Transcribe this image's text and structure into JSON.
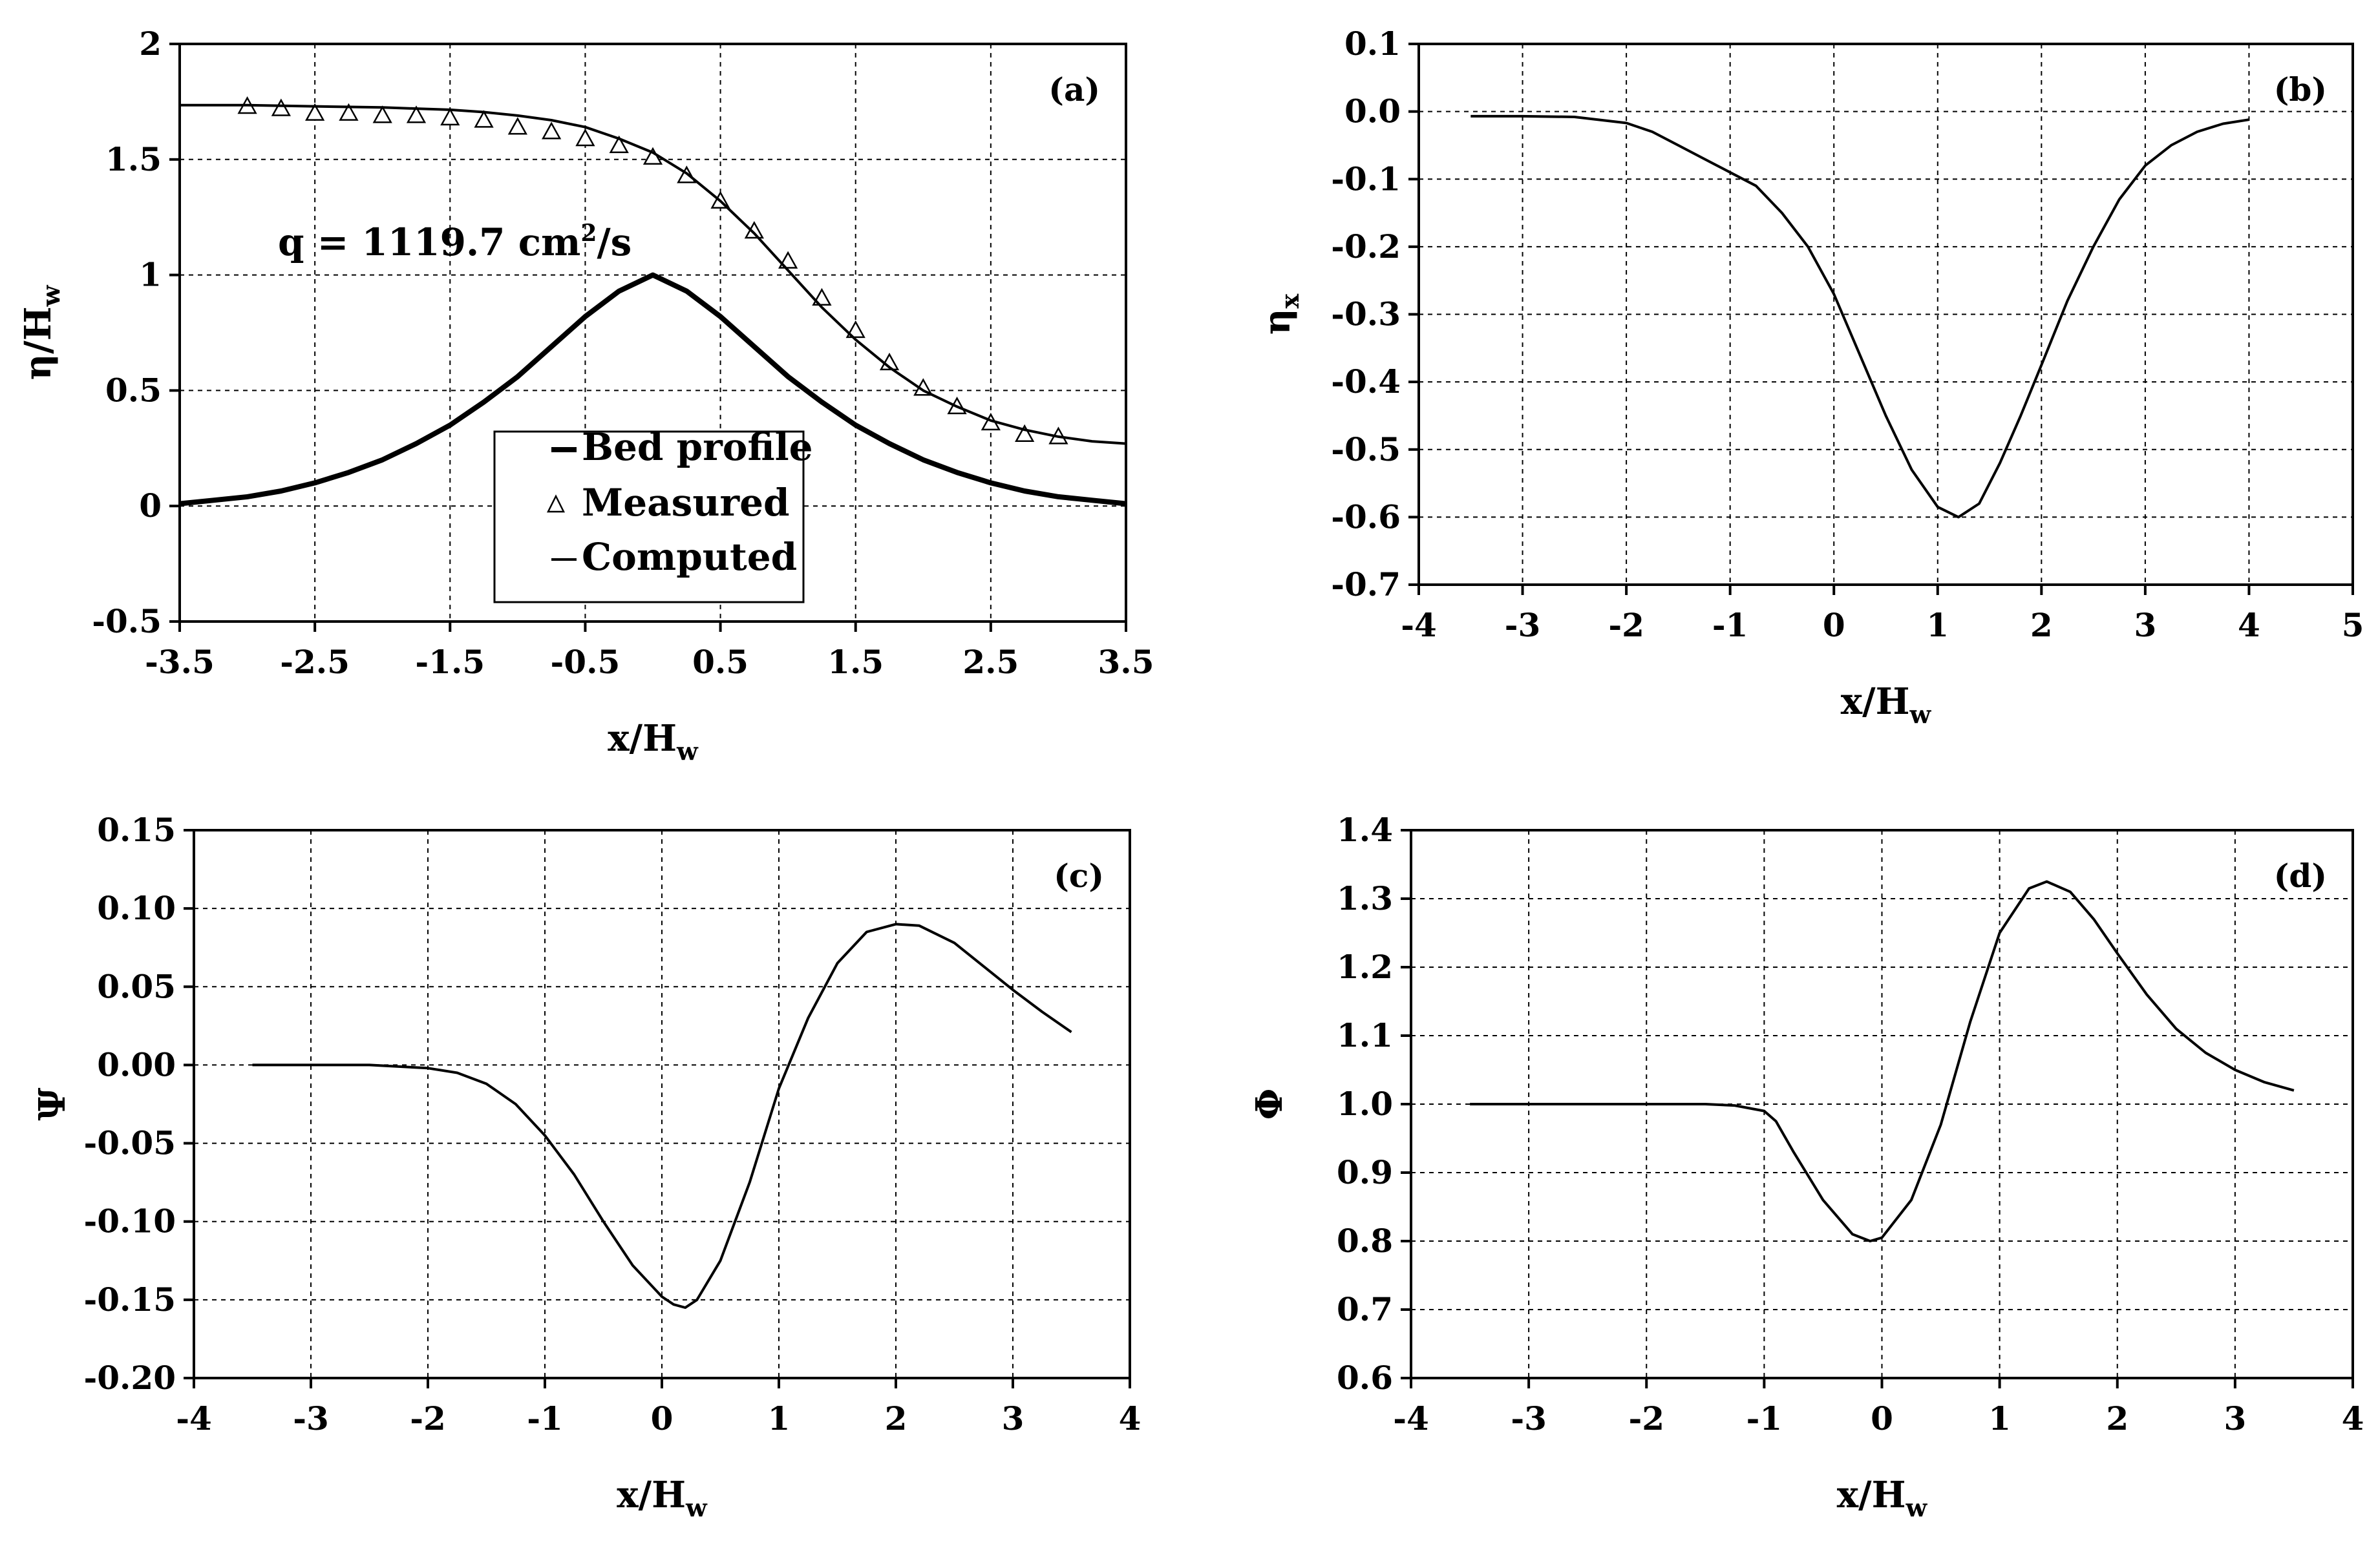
{
  "chart_data": [
    {
      "id": "a",
      "type": "line",
      "panel_label": "(a)",
      "xlabel": "x/H",
      "xlabel_sub": "w",
      "ylabel": "η/H",
      "ylabel_sub": "w",
      "xlim": [
        -3.5,
        3.5
      ],
      "ylim": [
        -0.5,
        2
      ],
      "xticks": [
        -3.5,
        -2.5,
        -1.5,
        -0.5,
        0.5,
        1.5,
        2.5,
        3.5
      ],
      "xtick_labels": [
        "-3.5",
        "-2.5",
        "-1.5",
        "-0.5",
        "0.5",
        "1.5",
        "2.5",
        "3.5"
      ],
      "yticks": [
        -0.5,
        0,
        0.5,
        1,
        1.5,
        2
      ],
      "ytick_labels": [
        "-0.5",
        "0",
        "0.5",
        "1",
        "1.5",
        "2"
      ],
      "annotation": {
        "prefix": "q = 1119.7 cm",
        "sup": "2",
        "suffix": "/s"
      },
      "legend": {
        "position": "center-bottom",
        "entries": [
          "Bed profile",
          "Measured",
          "Computed"
        ]
      },
      "series": [
        {
          "name": "Bed profile",
          "style": "thick-line",
          "x": [
            -3.5,
            -3.25,
            -3,
            -2.75,
            -2.5,
            -2.25,
            -2,
            -1.75,
            -1.5,
            -1.25,
            -1,
            -0.75,
            -0.5,
            -0.25,
            0,
            0.25,
            0.5,
            0.75,
            1,
            1.25,
            1.5,
            1.75,
            2,
            2.25,
            2.5,
            2.75,
            3,
            3.25,
            3.5
          ],
          "y": [
            0.01,
            0.025,
            0.04,
            0.065,
            0.1,
            0.145,
            0.2,
            0.27,
            0.35,
            0.45,
            0.56,
            0.69,
            0.82,
            0.93,
            1.0,
            0.93,
            0.82,
            0.69,
            0.56,
            0.45,
            0.35,
            0.27,
            0.2,
            0.145,
            0.1,
            0.065,
            0.04,
            0.025,
            0.01
          ]
        },
        {
          "name": "Measured",
          "style": "triangle-markers",
          "x": [
            -3,
            -2.75,
            -2.5,
            -2.25,
            -2,
            -1.75,
            -1.5,
            -1.25,
            -1,
            -0.75,
            -0.5,
            -0.25,
            0,
            0.25,
            0.5,
            0.75,
            1,
            1.25,
            1.5,
            1.75,
            2,
            2.25,
            2.5,
            2.75,
            3
          ],
          "y": [
            1.73,
            1.72,
            1.7,
            1.7,
            1.69,
            1.69,
            1.68,
            1.67,
            1.64,
            1.62,
            1.59,
            1.56,
            1.51,
            1.43,
            1.32,
            1.19,
            1.06,
            0.9,
            0.76,
            0.62,
            0.51,
            0.43,
            0.36,
            0.31,
            0.3
          ]
        },
        {
          "name": "Computed",
          "style": "thin-line",
          "x": [
            -3.5,
            -3,
            -2.5,
            -2,
            -1.75,
            -1.5,
            -1.25,
            -1,
            -0.75,
            -0.5,
            -0.25,
            0,
            0.25,
            0.5,
            0.75,
            1,
            1.25,
            1.5,
            1.75,
            2,
            2.25,
            2.5,
            2.75,
            3,
            3.25,
            3.5
          ],
          "y": [
            1.735,
            1.735,
            1.73,
            1.725,
            1.72,
            1.715,
            1.705,
            1.69,
            1.67,
            1.64,
            1.59,
            1.53,
            1.44,
            1.32,
            1.18,
            1.02,
            0.86,
            0.72,
            0.6,
            0.5,
            0.43,
            0.37,
            0.33,
            0.3,
            0.28,
            0.27
          ]
        }
      ]
    },
    {
      "id": "b",
      "type": "line",
      "panel_label": "(b)",
      "xlabel": "x/H",
      "xlabel_sub": "w",
      "ylabel": "η",
      "ylabel_sub": "x",
      "xlim": [
        -4,
        5
      ],
      "ylim": [
        -0.7,
        0.1
      ],
      "xticks": [
        -4,
        -3,
        -2,
        -1,
        0,
        1,
        2,
        3,
        4,
        5
      ],
      "xtick_labels": [
        "-4",
        "-3",
        "-2",
        "-1",
        "0",
        "1",
        "2",
        "3",
        "4",
        "5"
      ],
      "yticks": [
        -0.7,
        -0.6,
        -0.5,
        -0.4,
        -0.3,
        -0.2,
        -0.1,
        0,
        0.1
      ],
      "ytick_labels": [
        "-0.7",
        "-0.6",
        "-0.5",
        "-0.4",
        "-0.3",
        "-0.2",
        "-0.1",
        "0.0",
        "0.1"
      ],
      "series": [
        {
          "name": "η_x",
          "style": "thin-line",
          "x": [
            -3.5,
            -3,
            -2.5,
            -2,
            -1.75,
            -1.5,
            -1.25,
            -1,
            -0.75,
            -0.5,
            -0.25,
            0,
            0.25,
            0.5,
            0.75,
            1,
            1.2,
            1.4,
            1.6,
            1.8,
            2,
            2.25,
            2.5,
            2.75,
            3,
            3.25,
            3.5,
            3.75,
            4
          ],
          "y": [
            -0.007,
            -0.007,
            -0.008,
            -0.017,
            -0.03,
            -0.05,
            -0.07,
            -0.09,
            -0.11,
            -0.15,
            -0.2,
            -0.27,
            -0.36,
            -0.45,
            -0.53,
            -0.585,
            -0.6,
            -0.58,
            -0.52,
            -0.45,
            -0.375,
            -0.28,
            -0.2,
            -0.13,
            -0.08,
            -0.05,
            -0.03,
            -0.018,
            -0.012
          ]
        }
      ]
    },
    {
      "id": "c",
      "type": "line",
      "panel_label": "(c)",
      "xlabel": "x/H",
      "xlabel_sub": "w",
      "ylabel": "Ψ",
      "ylabel_sub": "",
      "xlim": [
        -4,
        4
      ],
      "ylim": [
        -0.2,
        0.15
      ],
      "xticks": [
        -4,
        -3,
        -2,
        -1,
        0,
        1,
        2,
        3,
        4
      ],
      "xtick_labels": [
        "-4",
        "-3",
        "-2",
        "-1",
        "0",
        "1",
        "2",
        "3",
        "4"
      ],
      "yticks": [
        -0.2,
        -0.15,
        -0.1,
        -0.05,
        0,
        0.05,
        0.1,
        0.15
      ],
      "ytick_labels": [
        "-0.20",
        "-0.15",
        "-0.10",
        "-0.05",
        "0.00",
        "0.05",
        "0.10",
        "0.15"
      ],
      "series": [
        {
          "name": "Ψ",
          "style": "thin-line",
          "x": [
            -3.5,
            -3,
            -2.5,
            -2,
            -1.75,
            -1.5,
            -1.25,
            -1,
            -0.75,
            -0.5,
            -0.25,
            0,
            0.1,
            0.2,
            0.3,
            0.5,
            0.75,
            1,
            1.25,
            1.5,
            1.75,
            2,
            2.2,
            2.5,
            2.75,
            3,
            3.25,
            3.5
          ],
          "y": [
            0,
            0,
            0,
            -0.002,
            -0.005,
            -0.012,
            -0.025,
            -0.045,
            -0.07,
            -0.1,
            -0.128,
            -0.148,
            -0.153,
            -0.155,
            -0.15,
            -0.125,
            -0.075,
            -0.015,
            0.03,
            0.065,
            0.085,
            0.09,
            0.089,
            0.078,
            0.063,
            0.048,
            0.034,
            0.021
          ]
        }
      ]
    },
    {
      "id": "d",
      "type": "line",
      "panel_label": "(d)",
      "xlabel": "x/H",
      "xlabel_sub": "w",
      "ylabel": "Φ",
      "ylabel_sub": "",
      "xlim": [
        -4,
        4
      ],
      "ylim": [
        0.6,
        1.4
      ],
      "xticks": [
        -4,
        -3,
        -2,
        -1,
        0,
        1,
        2,
        3,
        4
      ],
      "xtick_labels": [
        "-4",
        "-3",
        "-2",
        "-1",
        "0",
        "1",
        "2",
        "3",
        "4"
      ],
      "yticks": [
        0.6,
        0.7,
        0.8,
        0.9,
        1.0,
        1.1,
        1.2,
        1.3,
        1.4
      ],
      "ytick_labels": [
        "0.6",
        "0.7",
        "0.8",
        "0.9",
        "1.0",
        "1.1",
        "1.2",
        "1.3",
        "1.4"
      ],
      "series": [
        {
          "name": "Φ",
          "style": "thin-line",
          "x": [
            -3.5,
            -3,
            -2.5,
            -2,
            -1.5,
            -1.25,
            -1,
            -0.9,
            -0.75,
            -0.5,
            -0.25,
            -0.1,
            0,
            0.25,
            0.5,
            0.75,
            1,
            1.25,
            1.4,
            1.6,
            1.8,
            2,
            2.25,
            2.5,
            2.75,
            3,
            3.25,
            3.5
          ],
          "y": [
            1.0,
            1.0,
            1.0,
            1.0,
            1.0,
            0.998,
            0.99,
            0.975,
            0.93,
            0.86,
            0.81,
            0.8,
            0.805,
            0.86,
            0.97,
            1.12,
            1.25,
            1.315,
            1.325,
            1.31,
            1.27,
            1.22,
            1.16,
            1.11,
            1.075,
            1.05,
            1.032,
            1.02
          ]
        }
      ]
    }
  ]
}
